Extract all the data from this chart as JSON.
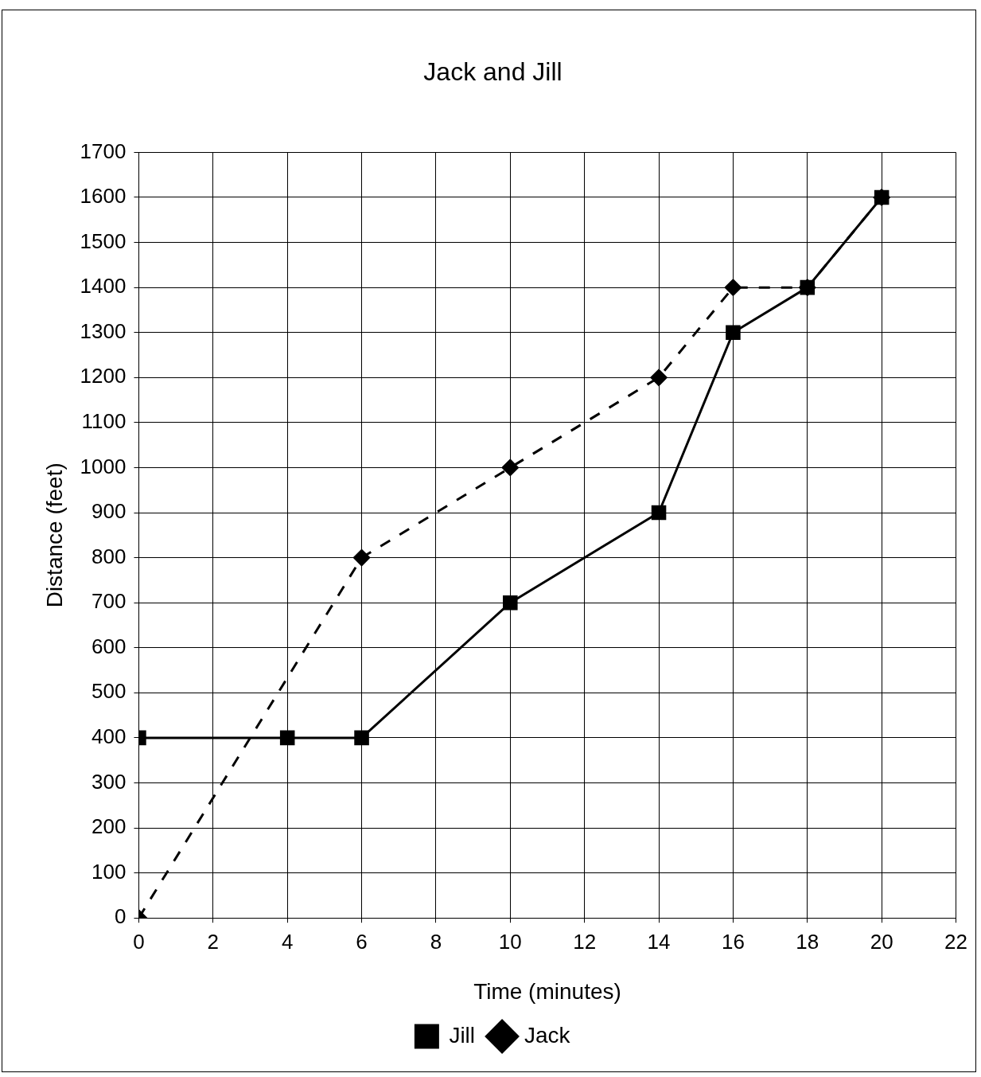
{
  "chart_data": {
    "type": "line",
    "title": "Jack and Jill",
    "xlabel": "Time (minutes)",
    "ylabel": "Distance (feet)",
    "xlim": [
      0,
      22
    ],
    "xticks": [
      0,
      2,
      4,
      6,
      8,
      10,
      12,
      14,
      16,
      18,
      20,
      22
    ],
    "ylim": [
      0,
      1700
    ],
    "yticks": [
      0,
      100,
      200,
      300,
      400,
      500,
      600,
      700,
      800,
      900,
      1000,
      1100,
      1200,
      1300,
      1400,
      1500,
      1600,
      1700
    ],
    "grid": true,
    "legend": "bottom",
    "series": [
      {
        "name": "Jill",
        "color": "#000000",
        "marker": "square",
        "line_style": "solid",
        "x": [
          0,
          4,
          6,
          10,
          14,
          16,
          18,
          20
        ],
        "values": [
          400,
          400,
          400,
          700,
          900,
          1300,
          1400,
          1600
        ]
      },
      {
        "name": "Jack",
        "color": "#000000",
        "marker": "diamond",
        "line_style": "dashed",
        "x": [
          0,
          6,
          10,
          14,
          16,
          18,
          20
        ],
        "values": [
          0,
          800,
          1000,
          1200,
          1400,
          1400,
          1600
        ]
      }
    ]
  }
}
